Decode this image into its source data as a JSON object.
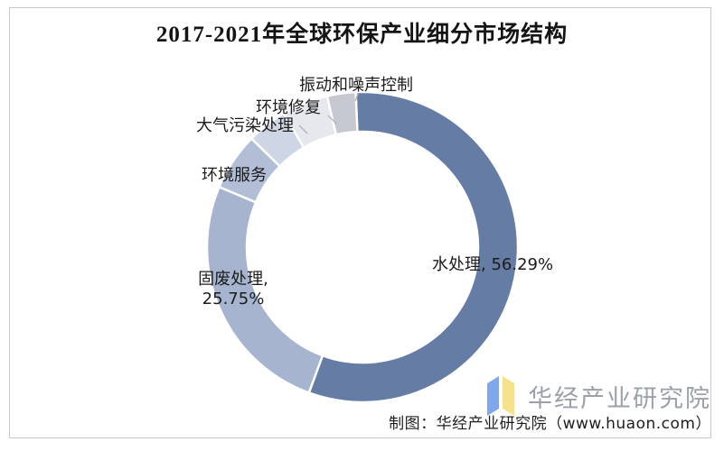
{
  "frame": {
    "border_color": "#c6c9cc",
    "background": "#ffffff"
  },
  "title": {
    "text": "2017-2021年全球环保产业细分市场结构",
    "color": "#141414"
  },
  "chart_data": {
    "type": "pie",
    "subtype": "donut",
    "title": "2017-2021年全球环保产业细分市场结构",
    "units": "%",
    "start_angle_deg": -2.5,
    "direction": "clockwise",
    "legend_position": "none",
    "labels_on_chart": true,
    "segments": [
      {
        "name": "水处理",
        "value": 56.29,
        "estimated": false,
        "color": "#657CA5",
        "display": "水处理, 56.29%"
      },
      {
        "name": "固废处理",
        "value": 25.75,
        "estimated": false,
        "color": "#A6B4D0",
        "display": "固废处理,\n25.75%"
      },
      {
        "name": "环境服务",
        "value": 6.0,
        "estimated": true,
        "color": "#B2BED6",
        "display": "环境服务"
      },
      {
        "name": "大气污染处理",
        "value": 4.2,
        "estimated": true,
        "color": "#CED5E4",
        "display": "大气污染处理"
      },
      {
        "name": "环境修复",
        "value": 4.8,
        "estimated": true,
        "color": "#E6E8EE",
        "display": "环境修复"
      },
      {
        "name": "振动和噪声控制",
        "value": 2.96,
        "estimated": true,
        "color": "#C5C8D0",
        "display": "振动和噪声控制"
      }
    ]
  },
  "footer": {
    "logo_text": "华经产业研究院",
    "logo_text_color": "#9AA1A9",
    "logo_colors": {
      "left_page": "#7FA8EC",
      "right_page": "#F6E28C"
    },
    "credit": "制图：华经产业研究院（www.huaon.com）"
  }
}
